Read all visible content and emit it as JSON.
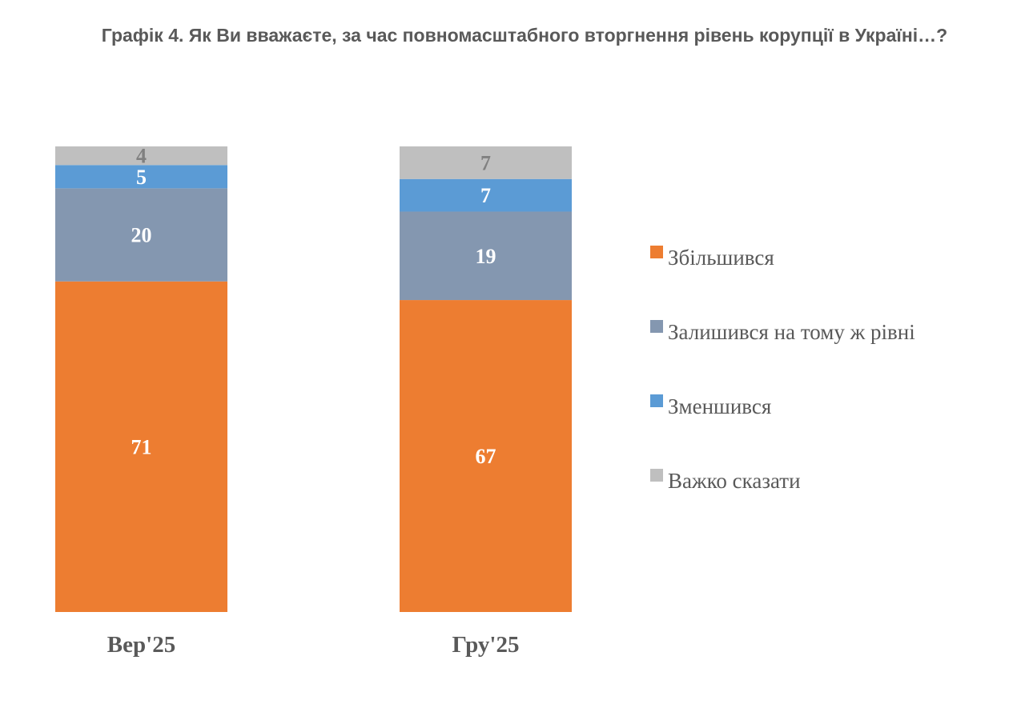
{
  "chart_data": {
    "type": "bar",
    "stacked": true,
    "title": "Графік 4. Як Ви вважаєте, за час повномасштабного вторгнення рівень корупції в Україні…?",
    "categories": [
      "Вер'25",
      "Гру'25"
    ],
    "series": [
      {
        "name": "Збільшився",
        "color": "#ED7D31",
        "label_color": "#FFFFFF",
        "values": [
          71,
          67
        ]
      },
      {
        "name": "Залишився на тому ж рівні",
        "color": "#8497B0",
        "label_color": "#FFFFFF",
        "values": [
          20,
          19
        ]
      },
      {
        "name": "Зменшився",
        "color": "#5B9BD5",
        "label_color": "#FFFFFF",
        "values": [
          5,
          7
        ]
      },
      {
        "name": "Важко сказати",
        "color": "#BFBFBF",
        "label_color": "#808080",
        "values": [
          4,
          7
        ]
      }
    ],
    "ylim": [
      0,
      100
    ],
    "grid": false,
    "axes_visible": false,
    "legend": "right"
  }
}
